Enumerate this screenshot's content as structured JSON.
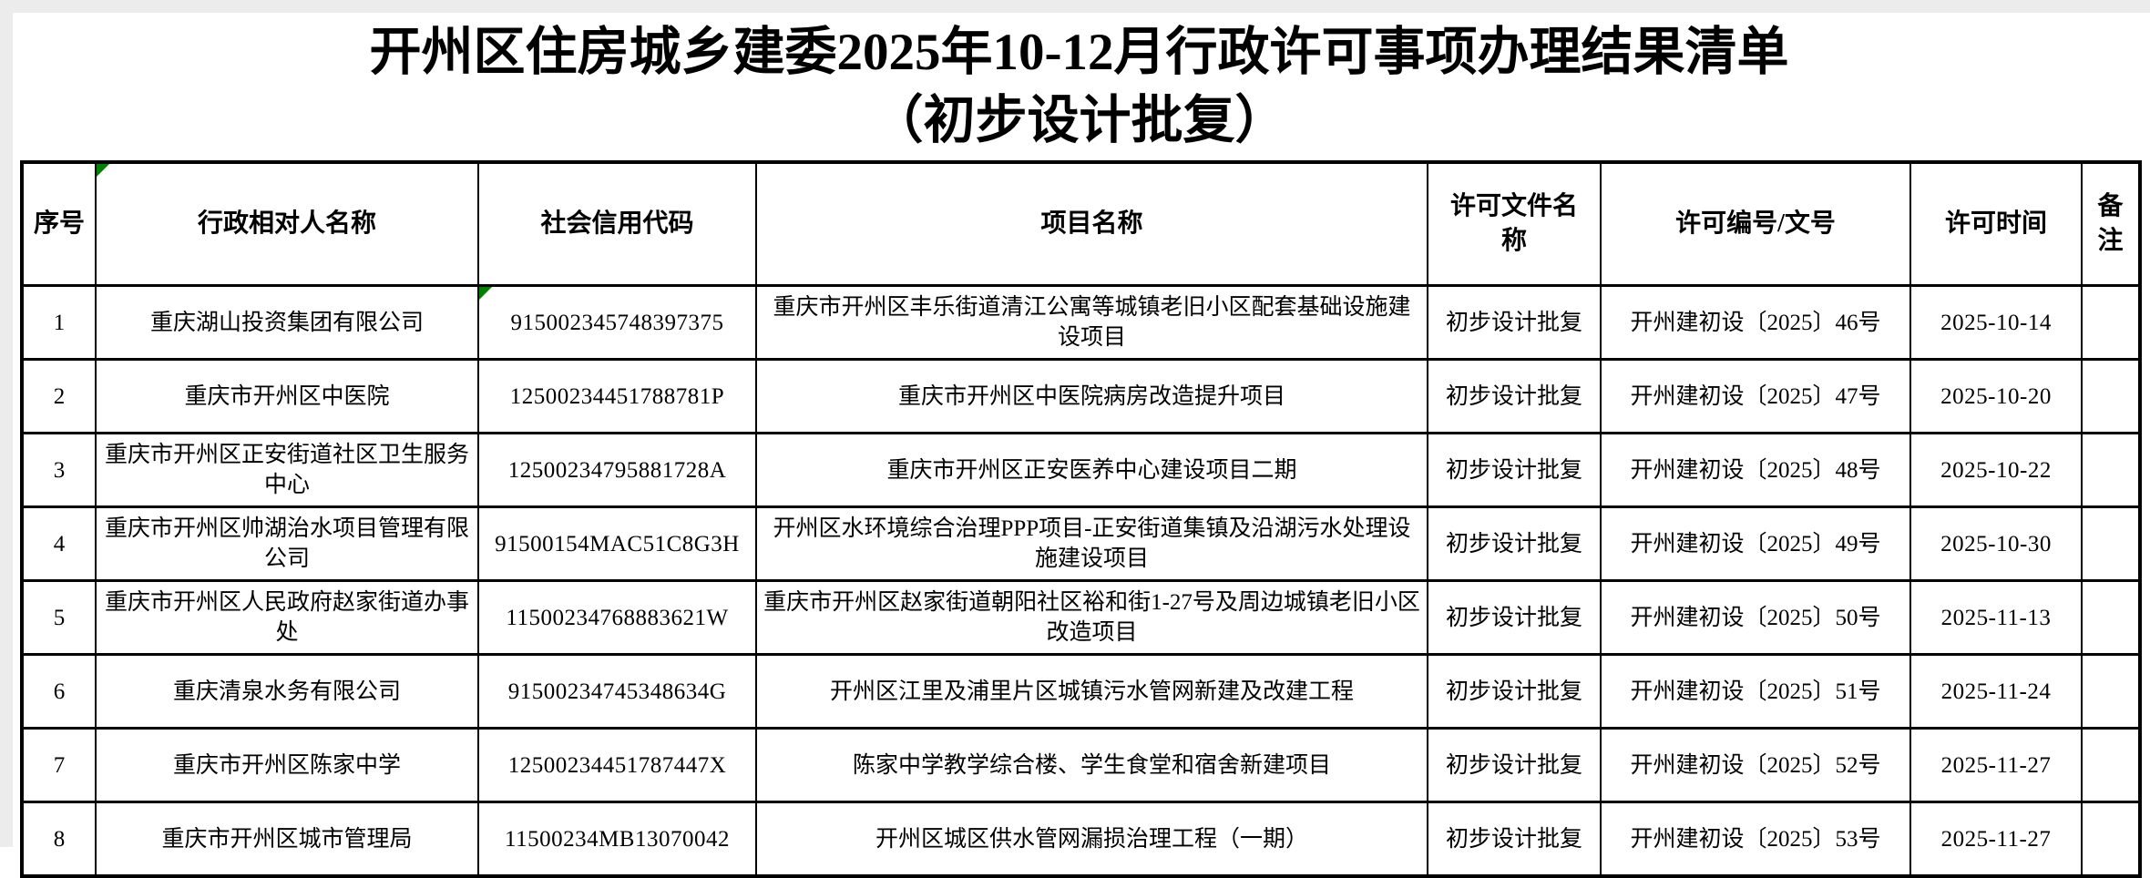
{
  "page": {
    "title_line1": "开州区住房城乡建委2025年10-12月行政许可事项办理结果清单",
    "title_line2": "（初步设计批复）"
  },
  "colors": {
    "flag_green": "#008000",
    "table_border": "#000000",
    "margin_background": "#ececec"
  },
  "table": {
    "columns": [
      {
        "key": "index",
        "label": "序号"
      },
      {
        "key": "name",
        "label": "行政相对人名称"
      },
      {
        "key": "credit_code",
        "label": "社会信用代码"
      },
      {
        "key": "project",
        "label": "项目名称"
      },
      {
        "key": "doc_name",
        "label": "许可文件名称"
      },
      {
        "key": "license_no",
        "label": "许可编号/文号"
      },
      {
        "key": "date",
        "label": "许可时间"
      },
      {
        "key": "remark",
        "label": "备注"
      }
    ],
    "rows": [
      [
        "1",
        "重庆湖山投资集团有限公司",
        "915002345748397375",
        "重庆市开州区丰乐街道清江公寓等城镇老旧小区配套基础设施建设项目",
        "初步设计批复",
        "开州建初设〔2025〕46号",
        "2025-10-14",
        ""
      ],
      [
        "2",
        "重庆市开州区中医院",
        "12500234451788781P",
        "重庆市开州区中医院病房改造提升项目",
        "初步设计批复",
        "开州建初设〔2025〕47号",
        "2025-10-20",
        ""
      ],
      [
        "3",
        "重庆市开州区正安街道社区卫生服务中心",
        "12500234795881728A",
        "重庆市开州区正安医养中心建设项目二期",
        "初步设计批复",
        "开州建初设〔2025〕48号",
        "2025-10-22",
        ""
      ],
      [
        "4",
        "重庆市开州区帅湖治水项目管理有限公司",
        "91500154MAC51C8G3H",
        "开州区水环境综合治理PPP项目-正安街道集镇及沿湖污水处理设施建设项目",
        "初步设计批复",
        "开州建初设〔2025〕49号",
        "2025-10-30",
        ""
      ],
      [
        "5",
        "重庆市开州区人民政府赵家街道办事处",
        "11500234768883621W",
        "重庆市开州区赵家街道朝阳社区裕和街1-27号及周边城镇老旧小区改造项目",
        "初步设计批复",
        "开州建初设〔2025〕50号",
        "2025-11-13",
        ""
      ],
      [
        "6",
        "重庆清泉水务有限公司",
        "91500234745348634G",
        "开州区江里及浦里片区城镇污水管网新建及改建工程",
        "初步设计批复",
        "开州建初设〔2025〕51号",
        "2025-11-24",
        ""
      ],
      [
        "7",
        "重庆市开州区陈家中学",
        "12500234451787447X",
        "陈家中学教学综合楼、学生食堂和宿舍新建项目",
        "初步设计批复",
        "开州建初设〔2025〕52号",
        "2025-11-27",
        ""
      ],
      [
        "8",
        "重庆市开州区城市管理局",
        "11500234MB13070042",
        "开州区城区供水管网漏损治理工程（一期）",
        "初步设计批复",
        "开州建初设〔2025〕53号",
        "2025-11-27",
        ""
      ]
    ]
  },
  "flags": [
    {
      "area": "header",
      "row": 0,
      "col": 1
    },
    {
      "area": "body",
      "row": 0,
      "col": 2
    }
  ]
}
